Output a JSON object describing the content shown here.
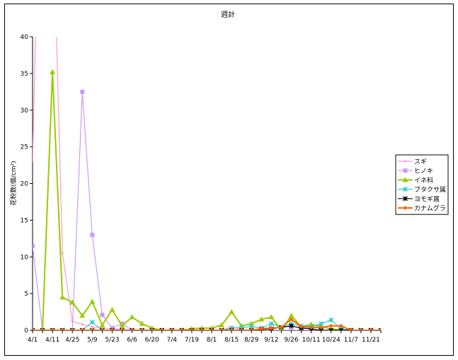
{
  "chart_data": {
    "type": "line",
    "title": "週計",
    "ylabel": "花粉数(個/cm²)",
    "xlabel": "",
    "ylim": [
      0,
      40
    ],
    "yticks": [
      0,
      5,
      10,
      15,
      20,
      25,
      30,
      35,
      40
    ],
    "x_count": 36,
    "x_tick_labels": [
      "4/1",
      "4/11",
      "4/25",
      "5/9",
      "5/23",
      "6/6",
      "6/20",
      "7/4",
      "7/19",
      "8/1",
      "8/15",
      "8/29",
      "9/12",
      "9/26",
      "10/11",
      "10/24",
      "11/7",
      "11/21"
    ],
    "x_tick_label_positions": [
      0,
      2,
      4,
      6,
      8,
      10,
      12,
      14,
      16,
      18,
      20,
      22,
      24,
      26,
      28,
      30,
      32,
      34
    ],
    "legend_position": "right",
    "series": [
      {
        "name": "スギ",
        "color": "#ff99cc",
        "marker": "dot",
        "values": [
          23,
          80,
          60,
          10.5,
          1.2,
          0.8,
          0.5,
          0.3,
          0.2,
          0.1,
          0,
          0,
          0,
          0,
          0,
          0,
          0,
          0,
          0,
          0,
          0.5,
          0,
          0,
          0,
          0,
          0,
          0,
          0,
          0,
          0,
          0,
          0,
          0,
          0,
          0,
          0
        ]
      },
      {
        "name": "ヒノキ",
        "color": "#cc99ff",
        "marker": "square",
        "values": [
          11.5,
          0,
          0,
          0,
          0,
          32.5,
          13,
          2.1,
          0.3,
          0.9,
          0,
          0,
          0,
          0,
          0,
          0,
          0,
          0,
          0,
          0,
          0,
          0,
          0,
          0,
          0,
          0,
          0,
          0,
          0,
          0,
          0,
          0,
          0,
          0,
          0,
          0
        ]
      },
      {
        "name": "イネ科",
        "color": "#99cc00",
        "marker": "triangle",
        "values": [
          0,
          0,
          35.2,
          4.5,
          3.8,
          2,
          3.9,
          0.7,
          2.8,
          0.6,
          1.8,
          0.9,
          0.3,
          0,
          0,
          0,
          0.2,
          0.3,
          0.3,
          0.7,
          2.5,
          0.6,
          0.9,
          1.5,
          1.8,
          0,
          2,
          0.5,
          0.8,
          0.5,
          0.2,
          0,
          0,
          0,
          0,
          0
        ]
      },
      {
        "name": "ブタクサ属",
        "color": "#33cccc",
        "marker": "star",
        "values": [
          0,
          0,
          0,
          0,
          0,
          0,
          1.1,
          0,
          0,
          0,
          0,
          0,
          0,
          0,
          0,
          0,
          0,
          0,
          0,
          0,
          0.3,
          0.4,
          0.5,
          0.3,
          0.9,
          0.4,
          0.9,
          0.6,
          0.5,
          0.9,
          1.4,
          0.2,
          0,
          0,
          0,
          0
        ]
      },
      {
        "name": "ヨモギ属",
        "color": "#000000",
        "marker": "star",
        "values": [
          0,
          0,
          0,
          0,
          0,
          0,
          0,
          0,
          0,
          0,
          0,
          0,
          0,
          0,
          0,
          0,
          0,
          0,
          0,
          0,
          0,
          0,
          0,
          0.1,
          0.2,
          0.4,
          0.6,
          0.3,
          0.2,
          0,
          0,
          0,
          0,
          0,
          0,
          0
        ]
      },
      {
        "name": "カナムグラ",
        "color": "#ff6600",
        "marker": "diamond",
        "values": [
          0,
          0,
          0,
          0,
          0,
          0,
          0,
          0,
          0,
          0,
          0,
          0,
          0,
          0,
          0,
          0,
          0,
          0,
          0,
          0,
          0,
          0,
          0,
          0.2,
          0.3,
          0.4,
          1.5,
          0.5,
          0.4,
          0.4,
          0.6,
          0.6,
          0,
          0,
          0,
          0
        ]
      }
    ]
  }
}
